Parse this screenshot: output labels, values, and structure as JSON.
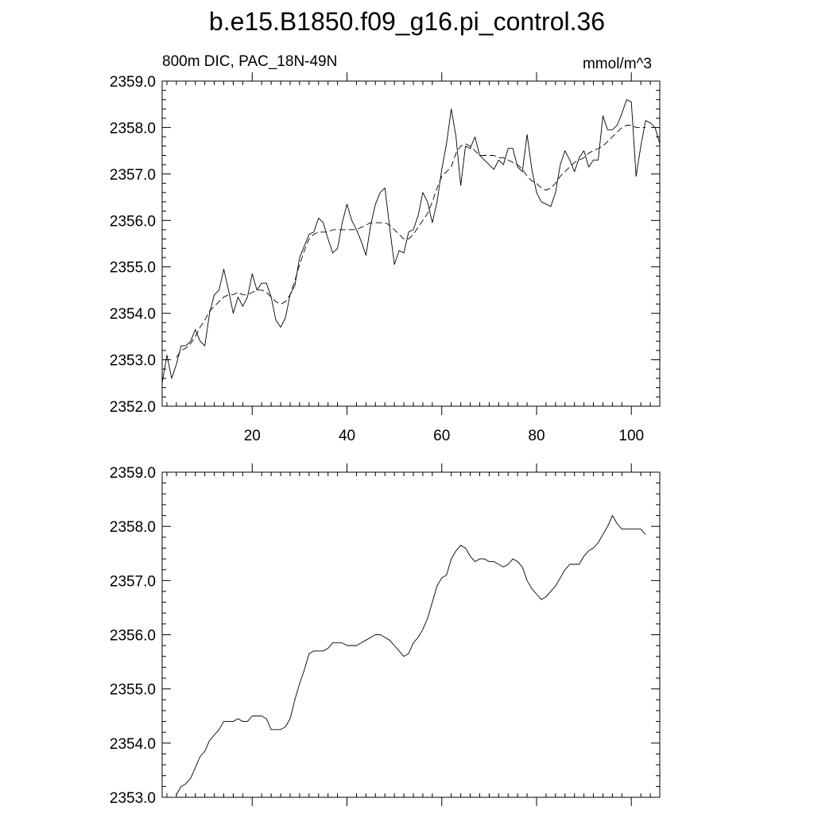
{
  "figure": {
    "title": "b.e15.B1850.f09_g16.pi_control.36"
  },
  "chart_data": [
    {
      "type": "line",
      "left_label": "800m DIC, PAC_18N-49N",
      "right_label": "mmol/m^3",
      "xlim": [
        1,
        106
      ],
      "ylim": [
        2352.0,
        2359.0
      ],
      "yticks": [
        "2352.0",
        "2353.0",
        "2354.0",
        "2355.0",
        "2356.0",
        "2357.0",
        "2358.0",
        "2359.0"
      ],
      "xticks": [
        "20",
        "40",
        "60",
        "80",
        "100"
      ],
      "series": [
        {
          "style": "solid",
          "x": [
            1,
            2,
            3,
            4,
            5,
            6,
            7,
            8,
            9,
            10,
            11,
            12,
            13,
            14,
            15,
            16,
            17,
            18,
            19,
            20,
            21,
            22,
            23,
            24,
            25,
            26,
            27,
            28,
            29,
            30,
            31,
            32,
            33,
            34,
            35,
            36,
            37,
            38,
            39,
            40,
            41,
            42,
            43,
            44,
            45,
            46,
            47,
            48,
            49,
            50,
            51,
            52,
            53,
            54,
            55,
            56,
            57,
            58,
            59,
            60,
            61,
            62,
            63,
            64,
            65,
            66,
            67,
            68,
            69,
            70,
            71,
            72,
            73,
            74,
            75,
            76,
            77,
            78,
            79,
            80,
            81,
            82,
            83,
            84,
            85,
            86,
            87,
            88,
            89,
            90,
            91,
            92,
            93,
            94,
            95,
            96,
            97,
            98,
            99,
            100,
            101,
            102,
            103,
            104,
            105,
            106
          ],
          "y": [
            2352.5,
            2353.1,
            2352.6,
            2352.9,
            2353.3,
            2353.3,
            2353.4,
            2353.65,
            2353.4,
            2353.3,
            2354.0,
            2354.4,
            2354.5,
            2354.95,
            2354.5,
            2354.0,
            2354.35,
            2354.15,
            2354.35,
            2354.85,
            2354.5,
            2354.65,
            2354.65,
            2354.35,
            2353.85,
            2353.7,
            2353.9,
            2354.4,
            2354.6,
            2355.2,
            2355.45,
            2355.7,
            2355.75,
            2356.05,
            2355.95,
            2355.6,
            2355.3,
            2355.4,
            2355.95,
            2356.35,
            2356.0,
            2355.8,
            2355.55,
            2355.25,
            2355.9,
            2356.35,
            2356.6,
            2356.7,
            2355.85,
            2355.05,
            2355.35,
            2355.3,
            2355.75,
            2355.8,
            2356.1,
            2356.6,
            2356.4,
            2355.95,
            2356.4,
            2357.1,
            2357.65,
            2358.4,
            2357.8,
            2356.75,
            2357.6,
            2357.55,
            2357.8,
            2357.4,
            2357.3,
            2357.2,
            2357.1,
            2357.3,
            2357.2,
            2357.55,
            2357.55,
            2357.15,
            2357.05,
            2357.85,
            2357.1,
            2356.6,
            2356.4,
            2356.35,
            2356.3,
            2356.6,
            2357.2,
            2357.5,
            2357.3,
            2357.05,
            2357.35,
            2357.5,
            2357.15,
            2357.3,
            2357.3,
            2358.25,
            2357.95,
            2357.95,
            2358.05,
            2358.3,
            2358.6,
            2358.55,
            2356.95,
            2357.6,
            2358.15,
            2358.1,
            2358.0,
            2357.65
          ]
        },
        {
          "style": "dashed",
          "x": [
            4,
            5,
            6,
            7,
            8,
            9,
            10,
            11,
            12,
            13,
            14,
            15,
            16,
            17,
            18,
            19,
            20,
            21,
            22,
            23,
            24,
            25,
            26,
            27,
            28,
            29,
            30,
            31,
            32,
            33,
            34,
            35,
            36,
            37,
            38,
            39,
            40,
            41,
            42,
            43,
            44,
            45,
            46,
            47,
            48,
            49,
            50,
            51,
            52,
            53,
            54,
            55,
            56,
            57,
            58,
            59,
            60,
            61,
            62,
            63,
            64,
            65,
            66,
            67,
            68,
            69,
            70,
            71,
            72,
            73,
            74,
            75,
            76,
            77,
            78,
            79,
            80,
            81,
            82,
            83,
            84,
            85,
            86,
            87,
            88,
            89,
            90,
            91,
            92,
            93,
            94,
            95,
            96,
            97,
            98,
            99,
            100,
            101,
            102,
            103
          ],
          "y": [
            2353.05,
            2353.2,
            2353.25,
            2353.35,
            2353.5,
            2353.7,
            2353.85,
            2354.05,
            2354.15,
            2354.25,
            2354.35,
            2354.4,
            2354.4,
            2354.45,
            2354.4,
            2354.4,
            2354.45,
            2354.5,
            2354.5,
            2354.45,
            2354.35,
            2354.25,
            2354.2,
            2354.25,
            2354.4,
            2354.7,
            2355.05,
            2355.35,
            2355.6,
            2355.7,
            2355.75,
            2355.75,
            2355.75,
            2355.8,
            2355.8,
            2355.8,
            2355.8,
            2355.8,
            2355.8,
            2355.85,
            2355.9,
            2355.95,
            2355.95,
            2355.95,
            2355.95,
            2355.9,
            2355.8,
            2355.7,
            2355.6,
            2355.6,
            2355.7,
            2355.85,
            2356.0,
            2356.15,
            2356.4,
            2356.7,
            2356.95,
            2357.05,
            2357.15,
            2357.45,
            2357.6,
            2357.65,
            2357.6,
            2357.5,
            2357.4,
            2357.4,
            2357.4,
            2357.4,
            2357.35,
            2357.35,
            2357.3,
            2357.25,
            2357.2,
            2357.1,
            2356.95,
            2356.85,
            2356.8,
            2356.7,
            2356.65,
            2356.7,
            2356.8,
            2356.95,
            2357.05,
            2357.15,
            2357.25,
            2357.3,
            2357.35,
            2357.45,
            2357.5,
            2357.55,
            2357.6,
            2357.7,
            2357.8,
            2357.9,
            2358.0,
            2358.05,
            2358.05,
            2358.0,
            2358.0,
            2358.0
          ]
        }
      ]
    },
    {
      "type": "line",
      "xlim": [
        1,
        106
      ],
      "ylim": [
        2353.0,
        2359.0
      ],
      "yticks": [
        "2353.0",
        "2354.0",
        "2355.0",
        "2356.0",
        "2357.0",
        "2358.0",
        "2359.0"
      ],
      "xticks": [],
      "series": [
        {
          "style": "solid",
          "x": [
            4,
            5,
            6,
            7,
            8,
            9,
            10,
            11,
            12,
            13,
            14,
            15,
            16,
            17,
            18,
            19,
            20,
            21,
            22,
            23,
            24,
            25,
            26,
            27,
            28,
            29,
            30,
            31,
            32,
            33,
            34,
            35,
            36,
            37,
            38,
            39,
            40,
            41,
            42,
            43,
            44,
            45,
            46,
            47,
            48,
            49,
            50,
            51,
            52,
            53,
            54,
            55,
            56,
            57,
            58,
            59,
            60,
            61,
            62,
            63,
            64,
            65,
            66,
            67,
            68,
            69,
            70,
            71,
            72,
            73,
            74,
            75,
            76,
            77,
            78,
            79,
            80,
            81,
            82,
            83,
            84,
            85,
            86,
            87,
            88,
            89,
            90,
            91,
            92,
            93,
            94,
            95,
            96,
            97,
            98,
            99,
            100,
            101,
            102,
            103
          ],
          "y": [
            2353.05,
            2353.2,
            2353.25,
            2353.35,
            2353.55,
            2353.75,
            2353.85,
            2354.05,
            2354.15,
            2354.25,
            2354.4,
            2354.4,
            2354.4,
            2354.45,
            2354.4,
            2354.4,
            2354.5,
            2354.5,
            2354.5,
            2354.45,
            2354.25,
            2354.25,
            2354.25,
            2354.3,
            2354.45,
            2354.8,
            2355.1,
            2355.35,
            2355.65,
            2355.7,
            2355.7,
            2355.7,
            2355.75,
            2355.85,
            2355.85,
            2355.85,
            2355.8,
            2355.8,
            2355.8,
            2355.85,
            2355.9,
            2355.95,
            2356.0,
            2356.0,
            2355.95,
            2355.9,
            2355.8,
            2355.7,
            2355.6,
            2355.65,
            2355.85,
            2355.95,
            2356.1,
            2356.3,
            2356.6,
            2356.9,
            2357.05,
            2357.1,
            2357.4,
            2357.55,
            2357.65,
            2357.6,
            2357.45,
            2357.35,
            2357.4,
            2357.4,
            2357.35,
            2357.35,
            2357.3,
            2357.25,
            2357.3,
            2357.4,
            2357.35,
            2357.25,
            2357.0,
            2356.85,
            2356.75,
            2356.65,
            2356.7,
            2356.8,
            2356.9,
            2357.05,
            2357.2,
            2357.3,
            2357.3,
            2357.3,
            2357.45,
            2357.55,
            2357.6,
            2357.7,
            2357.85,
            2358.0,
            2358.2,
            2358.05,
            2357.95,
            2357.95,
            2357.95,
            2357.95,
            2357.95,
            2357.85
          ]
        }
      ]
    }
  ]
}
